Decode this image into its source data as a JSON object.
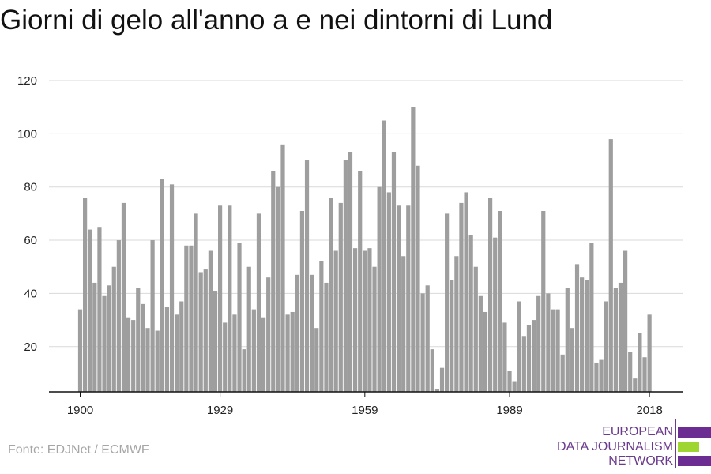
{
  "title": "Giorni di gelo all'anno a e nei dintorni di Lund",
  "source": "Fonte: EDJNet / ECMWF",
  "logo": {
    "lines": [
      "EUROPEAN",
      "DATA JOURNALISM",
      "NETWORK"
    ],
    "colors": [
      "#6b2d91",
      "#9ed530",
      "#6b2d91"
    ]
  },
  "colors": {
    "bar": "#9e9e9e",
    "grid": "#d9d9d9",
    "axis": "#111111"
  },
  "chart_data": {
    "type": "bar",
    "title": "Giorni di gelo all'anno a e nei dintorni di Lund",
    "xlabel": "",
    "ylabel": "",
    "ylim": [
      3,
      120
    ],
    "yticks": [
      20,
      40,
      60,
      80,
      100,
      120
    ],
    "xticks": [
      1900,
      1929,
      1959,
      1989,
      2018
    ],
    "grid": true,
    "x_start": 1900,
    "x_end": 2018,
    "values": [
      34,
      76,
      64,
      44,
      65,
      39,
      43,
      50,
      60,
      74,
      31,
      30,
      42,
      36,
      27,
      60,
      26,
      83,
      35,
      81,
      32,
      37,
      58,
      58,
      70,
      48,
      49,
      56,
      41,
      73,
      29,
      73,
      32,
      59,
      19,
      50,
      34,
      70,
      31,
      46,
      86,
      80,
      96,
      32,
      33,
      47,
      71,
      90,
      47,
      27,
      52,
      44,
      76,
      56,
      74,
      90,
      93,
      57,
      86,
      56,
      57,
      50,
      80,
      105,
      78,
      93,
      73,
      54,
      73,
      110,
      88,
      40,
      43,
      19,
      4,
      12,
      70,
      45,
      54,
      74,
      78,
      62,
      50,
      39,
      33,
      76,
      61,
      71,
      29,
      11,
      7,
      37,
      24,
      28,
      30,
      39,
      71,
      40,
      34,
      34,
      17,
      42,
      27,
      51,
      46,
      45,
      59,
      14,
      15,
      37,
      98,
      42,
      44,
      56,
      18,
      8,
      25,
      16,
      32
    ]
  }
}
